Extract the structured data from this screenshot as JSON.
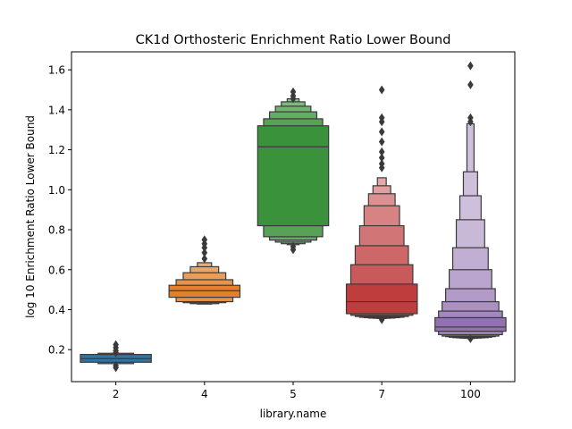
{
  "chart_data": {
    "type": "boxen",
    "title": "CK1d Orthosteric Enrichment Ratio Lower Bound",
    "xlabel": "library.name",
    "ylabel": "log 10 Enrichment Ratio Lower Bound",
    "categories": [
      "2",
      "4",
      "5",
      "7",
      "100"
    ],
    "ylim": [
      0.04,
      1.69
    ],
    "yticks": [
      0.2,
      0.4,
      0.6,
      0.8,
      1.0,
      1.2,
      1.4,
      1.6
    ],
    "ytick_labels": [
      "0.2",
      "0.4",
      "0.6",
      "0.8",
      "1.0",
      "1.2",
      "1.4",
      "1.6"
    ],
    "grid": false,
    "legend": "none",
    "series": [
      {
        "category": "2",
        "color": "#3174a1",
        "median": 0.155,
        "boxes": [
          [
            0.137,
            0.176
          ],
          [
            0.13,
            0.182
          ]
        ],
        "outliers": [
          0.11,
          0.12,
          0.185,
          0.195,
          0.21,
          0.225
        ]
      },
      {
        "category": "4",
        "color": "#e1812b",
        "median": 0.495,
        "boxes": [
          [
            0.462,
            0.522
          ],
          [
            0.44,
            0.55
          ],
          [
            0.435,
            0.585
          ],
          [
            0.43,
            0.615
          ],
          [
            0.428,
            0.635
          ]
        ],
        "outliers": [
          0.655,
          0.685,
          0.71,
          0.73,
          0.75
        ]
      },
      {
        "category": "5",
        "color": "#3a923a",
        "median": 1.215,
        "boxes": [
          [
            0.82,
            1.32
          ],
          [
            0.765,
            1.355
          ],
          [
            0.748,
            1.39
          ],
          [
            0.738,
            1.418
          ],
          [
            0.73,
            1.44
          ],
          [
            0.725,
            1.455
          ]
        ],
        "outliers": [
          0.7,
          0.715,
          1.455,
          1.47,
          1.49
        ]
      },
      {
        "category": "7",
        "color": "#c03d3e",
        "median": 0.44,
        "boxes": [
          [
            0.38,
            0.528
          ],
          [
            0.372,
            0.625
          ],
          [
            0.366,
            0.72
          ],
          [
            0.362,
            0.82
          ],
          [
            0.36,
            0.92
          ],
          [
            0.358,
            0.98
          ],
          [
            0.357,
            1.02
          ],
          [
            0.356,
            1.06
          ]
        ],
        "outliers": [
          0.35,
          1.11,
          1.13,
          1.16,
          1.19,
          1.24,
          1.29,
          1.34,
          1.36,
          1.5
        ]
      },
      {
        "category": "100",
        "color": "#9372b2",
        "median": 0.313,
        "boxes": [
          [
            0.292,
            0.36
          ],
          [
            0.275,
            0.393
          ],
          [
            0.268,
            0.44
          ],
          [
            0.265,
            0.505
          ],
          [
            0.262,
            0.6
          ],
          [
            0.26,
            0.71
          ],
          [
            0.259,
            0.85
          ],
          [
            0.258,
            0.97
          ],
          [
            0.257,
            1.09
          ],
          [
            0.256,
            1.33
          ]
        ],
        "outliers": [
          0.255,
          1.34,
          1.36,
          1.525,
          1.62
        ]
      }
    ]
  }
}
